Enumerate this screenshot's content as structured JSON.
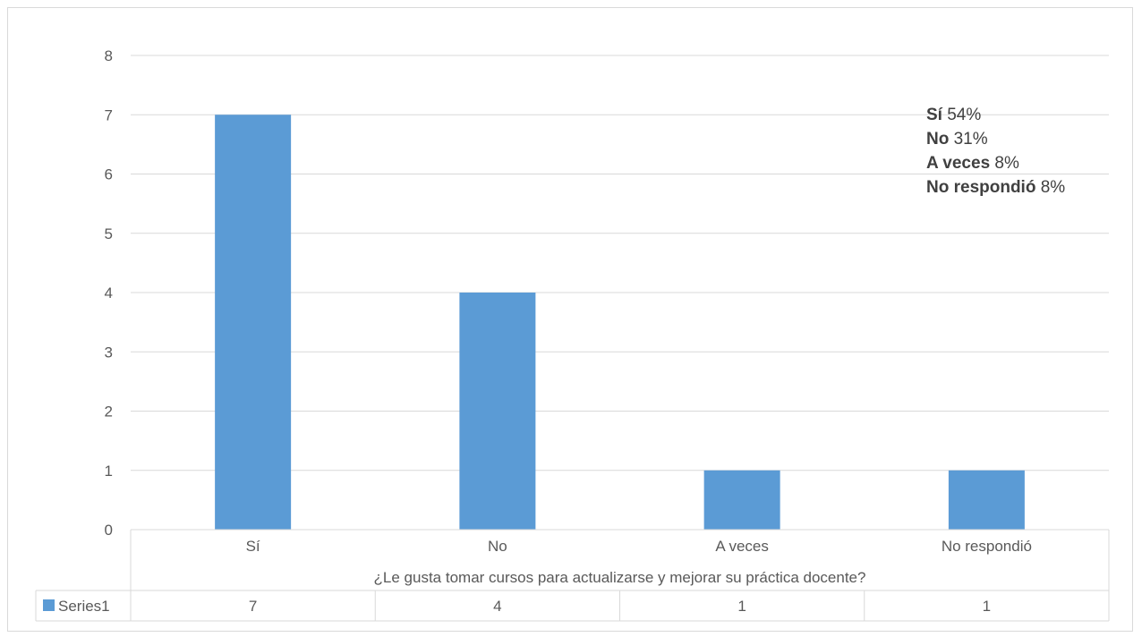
{
  "chart_data": {
    "type": "bar",
    "categories": [
      "Sí",
      "No",
      "A veces",
      "No respondió"
    ],
    "series": [
      {
        "name": "Series1",
        "values": [
          7,
          4,
          1,
          1
        ],
        "color": "#5b9bd5"
      }
    ],
    "xlabel": "¿Le gusta tomar cursos para actualizarse y mejorar su práctica docente?",
    "ylabel": "",
    "ylim": [
      0,
      8
    ],
    "yticks": [
      0,
      1,
      2,
      3,
      4,
      5,
      6,
      7,
      8
    ],
    "grid": true,
    "data_table": true,
    "annotations": [
      {
        "label": "Sí",
        "value": "54%"
      },
      {
        "label": "No",
        "value": "31%"
      },
      {
        "label": "A veces",
        "value": "8%"
      },
      {
        "label": "No respondió",
        "value": "8%"
      }
    ]
  }
}
